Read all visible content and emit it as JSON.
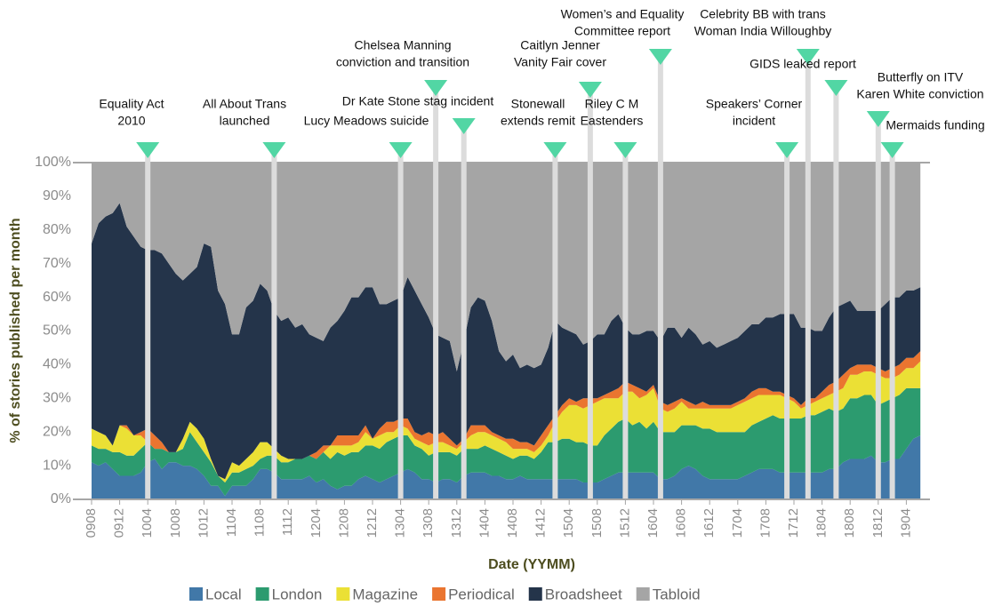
{
  "chart_data": {
    "type": "area",
    "stacked": true,
    "xlabel": "Date (YYMM)",
    "ylabel": "% of stories published  per month",
    "legend": "bottom",
    "ylim": [
      0,
      100
    ],
    "yticks": [
      {
        "value": 0,
        "label": "0%"
      },
      {
        "value": 10,
        "label": "10%"
      },
      {
        "value": 20,
        "label": "20%"
      },
      {
        "value": 30,
        "label": "30%"
      },
      {
        "value": 40,
        "label": "40%"
      },
      {
        "value": 50,
        "label": "50%"
      },
      {
        "value": 60,
        "label": "60%"
      },
      {
        "value": 70,
        "label": "70%"
      },
      {
        "value": 80,
        "label": "80%"
      },
      {
        "value": 90,
        "label": "90%"
      },
      {
        "value": 100,
        "label": "100%"
      }
    ],
    "categories": [
      "0908",
      null,
      null,
      null,
      "0912",
      null,
      null,
      null,
      "1004",
      null,
      null,
      null,
      "1008",
      null,
      null,
      null,
      "1012",
      null,
      null,
      null,
      "1104",
      null,
      null,
      null,
      "1108",
      null,
      null,
      null,
      "1112",
      null,
      null,
      null,
      "1204",
      null,
      null,
      null,
      "1208",
      null,
      null,
      null,
      "1212",
      null,
      null,
      null,
      "1304",
      null,
      null,
      null,
      "1308",
      null,
      null,
      null,
      "1312",
      null,
      null,
      null,
      "1404",
      null,
      null,
      null,
      "1408",
      null,
      null,
      null,
      "1412",
      null,
      null,
      null,
      "1504",
      null,
      null,
      null,
      "1508",
      null,
      null,
      null,
      "1512",
      null,
      null,
      null,
      "1604",
      null,
      null,
      null,
      "1608",
      null,
      null,
      null,
      "1612",
      null,
      null,
      null,
      "1704",
      null,
      null,
      null,
      "1708",
      null,
      null,
      null,
      "1712",
      null,
      null,
      null,
      "1804",
      null,
      null,
      null,
      "1808",
      null,
      null,
      null,
      "1812",
      null,
      null,
      null,
      "1904",
      null,
      null
    ],
    "series": [
      {
        "name": "Local",
        "color": "#4178a8",
        "values": [
          11,
          10,
          11,
          9,
          7,
          7,
          7,
          8,
          11,
          12,
          9,
          11,
          11,
          10,
          10,
          9,
          7,
          4,
          4,
          1,
          4,
          4,
          4,
          6,
          9,
          9,
          8,
          6,
          6,
          6,
          6,
          7,
          5,
          6,
          4,
          3,
          4,
          4,
          6,
          7,
          6,
          5,
          6,
          7,
          8,
          9,
          8,
          6,
          6,
          5,
          6,
          6,
          5,
          7,
          8,
          8,
          8,
          7,
          7,
          6,
          6,
          7,
          6,
          6,
          6,
          6,
          6,
          6,
          6,
          6,
          5,
          5,
          5,
          6,
          7,
          8,
          8,
          8,
          8,
          8,
          8,
          6,
          6,
          7,
          9,
          10,
          9,
          7,
          6,
          6,
          6,
          6,
          6,
          7,
          8,
          9,
          9,
          9,
          8,
          8,
          8,
          8,
          8,
          8,
          8,
          9,
          9,
          11,
          12,
          12,
          12,
          13,
          11,
          11,
          12,
          12,
          15,
          18,
          19
        ]
      },
      {
        "name": "London",
        "color": "#2c9b6f",
        "values": [
          5,
          5,
          4,
          5,
          7,
          6,
          6,
          7,
          6,
          3,
          6,
          3,
          3,
          5,
          10,
          8,
          7,
          7,
          3,
          4,
          4,
          4,
          5,
          4,
          3,
          4,
          5,
          5,
          5,
          6,
          6,
          6,
          7,
          8,
          8,
          11,
          9,
          10,
          8,
          9,
          10,
          10,
          11,
          11,
          11,
          10,
          8,
          9,
          7,
          9,
          8,
          8,
          8,
          8,
          7,
          7,
          8,
          8,
          7,
          7,
          6,
          6,
          7,
          6,
          8,
          11,
          11,
          12,
          12,
          11,
          12,
          11,
          11,
          13,
          14,
          15,
          16,
          14,
          15,
          13,
          15,
          14,
          14,
          13,
          13,
          12,
          13,
          14,
          15,
          14,
          14,
          14,
          14,
          13,
          14,
          14,
          15,
          16,
          16,
          16,
          16,
          16,
          17,
          17,
          18,
          18,
          17,
          16,
          18,
          18,
          19,
          18,
          17,
          18,
          18,
          19,
          18,
          15,
          14
        ]
      },
      {
        "name": "Magazine",
        "color": "#ebe035",
        "values": [
          5,
          5,
          4,
          2,
          8,
          8,
          6,
          4,
          0,
          0,
          0,
          0,
          0,
          3,
          3,
          4,
          4,
          1,
          0,
          1,
          3,
          2,
          3,
          4,
          5,
          4,
          2,
          2,
          1,
          0,
          0,
          0,
          0,
          0,
          4,
          2,
          3,
          2,
          3,
          4,
          2,
          4,
          3,
          2,
          3,
          2,
          2,
          2,
          3,
          3,
          3,
          2,
          2,
          2,
          4,
          5,
          4,
          4,
          4,
          4,
          3,
          2,
          2,
          2,
          2,
          2,
          6,
          8,
          10,
          11,
          10,
          12,
          13,
          11,
          9,
          7,
          8,
          10,
          7,
          10,
          10,
          7,
          6,
          7,
          7,
          5,
          5,
          6,
          6,
          7,
          7,
          7,
          8,
          9,
          8,
          8,
          7,
          6,
          7,
          6,
          5,
          3,
          3,
          4,
          4,
          4,
          6,
          6,
          7,
          7,
          7,
          7,
          9,
          7,
          6,
          6,
          6,
          6,
          8
        ]
      },
      {
        "name": "Periodical",
        "color": "#ea7530",
        "values": [
          0,
          0,
          0,
          0,
          0,
          1,
          0,
          1,
          4,
          4,
          2,
          0,
          0,
          0,
          0,
          0,
          0,
          0,
          0,
          0,
          0,
          0,
          0,
          0,
          0,
          0,
          0,
          0,
          0,
          0,
          0,
          0,
          2,
          2,
          0,
          3,
          3,
          3,
          2,
          2,
          0,
          2,
          3,
          3,
          2,
          3,
          2,
          2,
          4,
          2,
          3,
          2,
          1,
          1,
          3,
          2,
          2,
          1,
          1,
          1,
          3,
          2,
          2,
          2,
          3,
          3,
          2,
          2,
          2,
          1,
          3,
          2,
          1,
          1,
          2,
          3,
          3,
          2,
          3,
          1,
          1,
          2,
          2,
          2,
          1,
          2,
          1,
          2,
          1,
          1,
          1,
          1,
          1,
          1,
          2,
          2,
          2,
          1,
          1,
          1,
          1,
          1,
          2,
          1,
          2,
          3,
          3,
          4,
          2,
          3,
          2,
          2,
          2,
          2,
          3,
          3,
          3,
          3,
          3
        ]
      },
      {
        "name": "Broadsheet",
        "color": "#24344a",
        "values": [
          55,
          62,
          65,
          69,
          66,
          59,
          59,
          55,
          53,
          55,
          56,
          56,
          53,
          47,
          44,
          48,
          58,
          63,
          55,
          52,
          38,
          39,
          45,
          45,
          47,
          45,
          41,
          40,
          42,
          39,
          40,
          36,
          34,
          31,
          35,
          34,
          37,
          41,
          41,
          41,
          45,
          37,
          35,
          36,
          36,
          42,
          42,
          39,
          34,
          30,
          28,
          29,
          22,
          29,
          35,
          38,
          37,
          33,
          25,
          23,
          25,
          22,
          23,
          23,
          21,
          23,
          28,
          23,
          20,
          20,
          16,
          17,
          19,
          18,
          21,
          22,
          16,
          15,
          16,
          18,
          16,
          18,
          23,
          22,
          18,
          22,
          21,
          17,
          19,
          17,
          18,
          19,
          19,
          20,
          20,
          19,
          21,
          22,
          23,
          24,
          25,
          23,
          21,
          20,
          18,
          20,
          22,
          21,
          20,
          16,
          16,
          16,
          17,
          20,
          21,
          20,
          20,
          20,
          19
        ]
      },
      {
        "name": "Tabloid",
        "color": "#a5a5a5",
        "values": [
          24,
          18,
          16,
          15,
          12,
          19,
          22,
          25,
          26,
          26,
          27,
          30,
          33,
          35,
          33,
          31,
          24,
          25,
          38,
          42,
          51,
          51,
          43,
          41,
          36,
          38,
          44,
          47,
          46,
          49,
          48,
          51,
          52,
          53,
          49,
          47,
          44,
          40,
          40,
          37,
          37,
          42,
          42,
          41,
          40,
          34,
          38,
          42,
          46,
          51,
          52,
          53,
          62,
          53,
          43,
          40,
          41,
          47,
          56,
          59,
          57,
          61,
          60,
          61,
          60,
          55,
          47,
          49,
          50,
          51,
          54,
          53,
          51,
          51,
          47,
          45,
          49,
          51,
          51,
          50,
          50,
          53,
          49,
          49,
          52,
          49,
          51,
          54,
          53,
          55,
          54,
          53,
          52,
          50,
          48,
          48,
          46,
          46,
          45,
          45,
          45,
          49,
          49,
          50,
          50,
          46,
          43,
          42,
          41,
          44,
          44,
          44,
          44,
          42,
          40,
          40,
          38,
          38,
          37
        ]
      }
    ],
    "annotations": [
      {
        "x": "1004",
        "lines": [
          "Equality Act",
          "2010"
        ]
      },
      {
        "x": "1110",
        "lines": [
          "All About Trans",
          "launched"
        ]
      },
      {
        "x": "1304",
        "lines": [
          "Lucy Meadows suicide"
        ]
      },
      {
        "x": "1309",
        "lines": [
          "Chelsea Manning",
          "conviction and transition"
        ]
      },
      {
        "x": "1401",
        "lines": [
          "Dr Kate Stone stag incident"
        ]
      },
      {
        "x": "1502",
        "lines": [
          "Stonewall",
          "extends remit"
        ]
      },
      {
        "x": "1507",
        "lines": [
          "Caitlyn Jenner",
          "Vanity Fair cover"
        ]
      },
      {
        "x": "1512",
        "lines": [
          "Riley C M",
          "Eastenders"
        ]
      },
      {
        "x": "1605",
        "lines": [
          "Women’s and Equality",
          "Committee report"
        ]
      },
      {
        "x": "1711",
        "lines": [
          "Speakers’ Corner",
          "incident"
        ]
      },
      {
        "x": "1802",
        "lines": [
          "Celebrity BB with trans",
          "Woman India Willoughby"
        ]
      },
      {
        "x": "1806",
        "lines": [
          "GIDS leaked report"
        ]
      },
      {
        "x": "1812",
        "lines": [
          "Butterfly  on ITV",
          "Karen White conviction"
        ]
      },
      {
        "x": "1902",
        "lines": [
          "Mermaids funding"
        ]
      }
    ]
  }
}
